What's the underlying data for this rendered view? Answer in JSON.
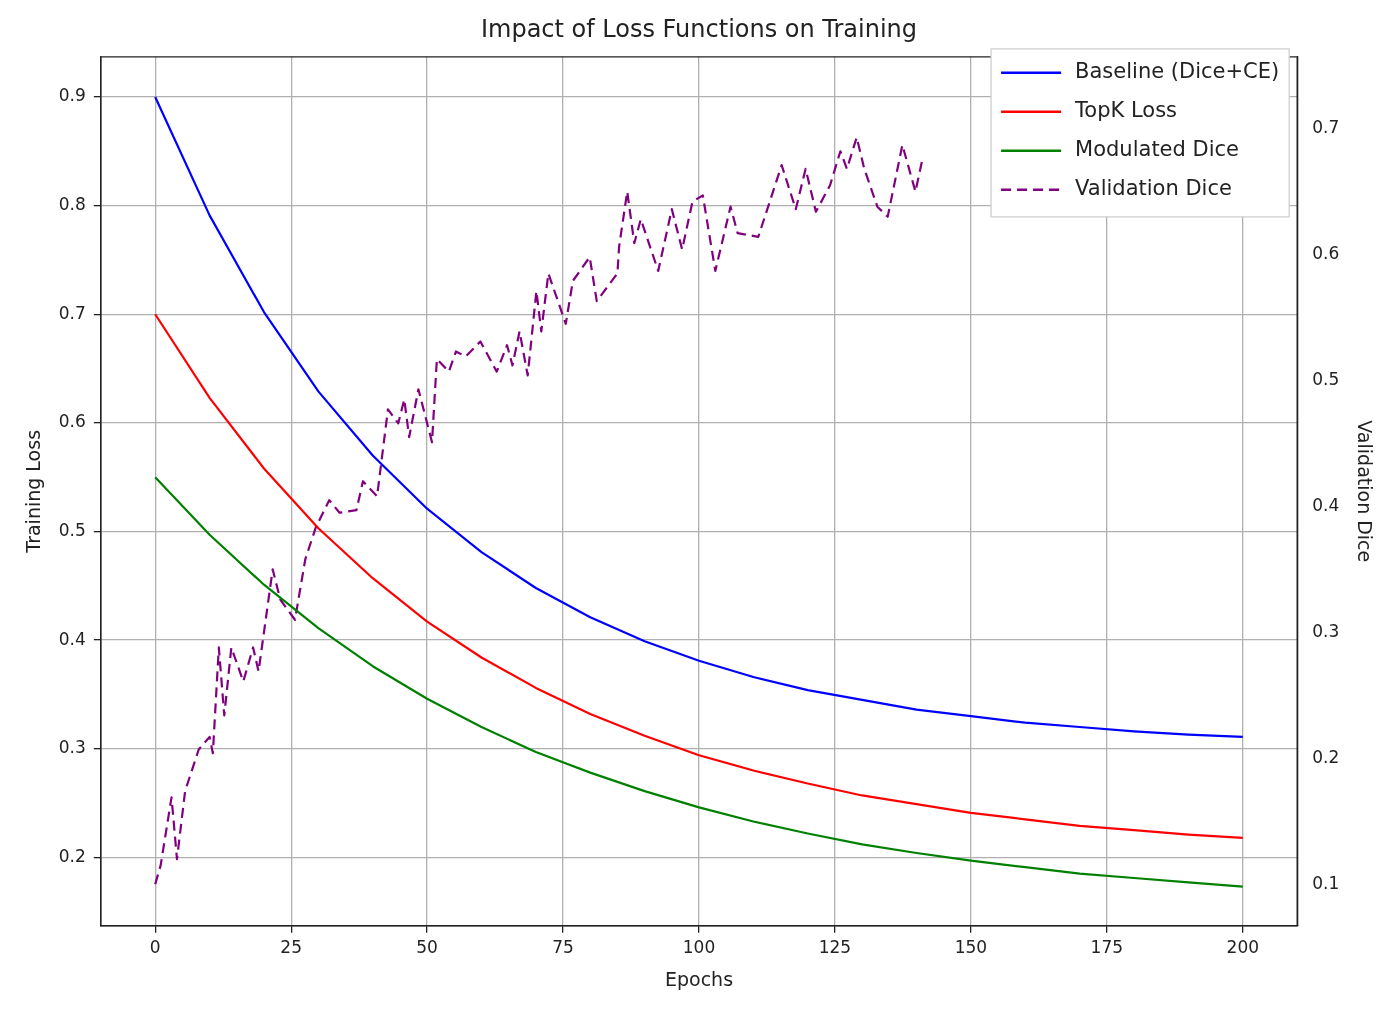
{
  "chart_data": {
    "type": "line",
    "title": "Impact of Loss Functions on Training",
    "xlabel": "Epochs",
    "ylabel": "Training Loss",
    "y2label": "Validation Dice",
    "xlim": [
      -10,
      210
    ],
    "xticks": [
      0,
      25,
      50,
      75,
      100,
      125,
      150,
      175,
      200
    ],
    "ylim": [
      0.137,
      0.937
    ],
    "yticks": [
      0.2,
      0.3,
      0.4,
      0.5,
      0.6,
      0.7,
      0.8,
      0.9
    ],
    "y2lim": [
      0.067,
      0.757
    ],
    "y2ticks": [
      0.1,
      0.2,
      0.3,
      0.4,
      0.5,
      0.6,
      0.7
    ],
    "grid": true,
    "legend": "top right",
    "marker": "none",
    "series": [
      {
        "name": "Baseline (Dice+CE)",
        "color": "#0000ff",
        "line_style": "solid",
        "x": [
          0,
          10,
          20,
          30,
          40,
          50,
          60,
          70,
          80,
          90,
          100,
          110,
          120,
          130,
          140,
          150,
          160,
          170,
          180,
          190,
          200
        ],
        "values": [
          0.9,
          0.791,
          0.702,
          0.629,
          0.57,
          0.521,
          0.481,
          0.448,
          0.421,
          0.399,
          0.381,
          0.366,
          0.354,
          0.345,
          0.336,
          0.33,
          0.324,
          0.32,
          0.316,
          0.313,
          0.311
        ]
      },
      {
        "name": "TopK Loss",
        "color": "#ff0000",
        "line_style": "solid",
        "x": [
          0,
          10,
          20,
          30,
          40,
          50,
          60,
          70,
          80,
          90,
          100,
          110,
          120,
          130,
          140,
          150,
          160,
          170,
          180,
          190,
          200
        ],
        "values": [
          0.7,
          0.623,
          0.558,
          0.503,
          0.457,
          0.417,
          0.384,
          0.356,
          0.332,
          0.312,
          0.294,
          0.28,
          0.268,
          0.257,
          0.249,
          0.241,
          0.235,
          0.229,
          0.225,
          0.221,
          0.218
        ]
      },
      {
        "name": "Modulated Dice",
        "color": "#008000",
        "line_style": "solid",
        "x": [
          0,
          10,
          20,
          30,
          40,
          50,
          60,
          70,
          80,
          90,
          100,
          110,
          120,
          130,
          140,
          150,
          160,
          170,
          180,
          190,
          200
        ],
        "values": [
          0.55,
          0.497,
          0.451,
          0.411,
          0.376,
          0.346,
          0.32,
          0.297,
          0.278,
          0.261,
          0.246,
          0.233,
          0.222,
          0.212,
          0.204,
          0.197,
          0.191,
          0.185,
          0.181,
          0.177,
          0.173
        ]
      },
      {
        "name": "Validation Dice",
        "color": "#800080",
        "line_style": "dashed",
        "axis": "y2",
        "x": [
          0,
          1,
          3,
          4,
          5.5,
          8,
          10,
          10.6,
          11.7,
          12.7,
          14,
          16.2,
          18,
          19,
          21.6,
          23,
          25.7,
          27.6,
          29.5,
          32,
          33.9,
          37,
          38.2,
          40.8,
          42.8,
          44.7,
          45.8,
          46.7,
          48.4,
          50.9,
          51.8,
          54,
          55.3,
          57.1,
          59.8,
          62.8,
          64.7,
          65.7,
          67,
          68.5,
          70.1,
          71,
          72.3,
          75.5,
          76.8,
          79.9,
          81.2,
          85,
          85.3,
          86.8,
          88.1,
          89.3,
          92.5,
          95,
          96.9,
          98.8,
          100.7,
          103,
          105.8,
          107.1,
          110.9,
          115.2,
          117.8,
          119.6,
          121.5,
          124.1,
          126,
          127.2,
          129,
          130.4,
          132.8,
          134.7,
          137.4,
          139.8,
          141
        ],
        "values": [
          0.1,
          0.115,
          0.169,
          0.12,
          0.174,
          0.207,
          0.217,
          0.204,
          0.288,
          0.234,
          0.288,
          0.261,
          0.288,
          0.269,
          0.35,
          0.326,
          0.31,
          0.358,
          0.383,
          0.405,
          0.395,
          0.397,
          0.42,
          0.408,
          0.477,
          0.466,
          0.485,
          0.455,
          0.493,
          0.451,
          0.517,
          0.507,
          0.523,
          0.519,
          0.531,
          0.507,
          0.528,
          0.512,
          0.539,
          0.504,
          0.571,
          0.539,
          0.585,
          0.545,
          0.579,
          0.598,
          0.563,
          0.585,
          0.606,
          0.65,
          0.609,
          0.628,
          0.587,
          0.636,
          0.604,
          0.642,
          0.647,
          0.587,
          0.638,
          0.617,
          0.614,
          0.671,
          0.636,
          0.668,
          0.634,
          0.655,
          0.682,
          0.668,
          0.693,
          0.668,
          0.638,
          0.63,
          0.687,
          0.65,
          0.674
        ]
      }
    ]
  }
}
